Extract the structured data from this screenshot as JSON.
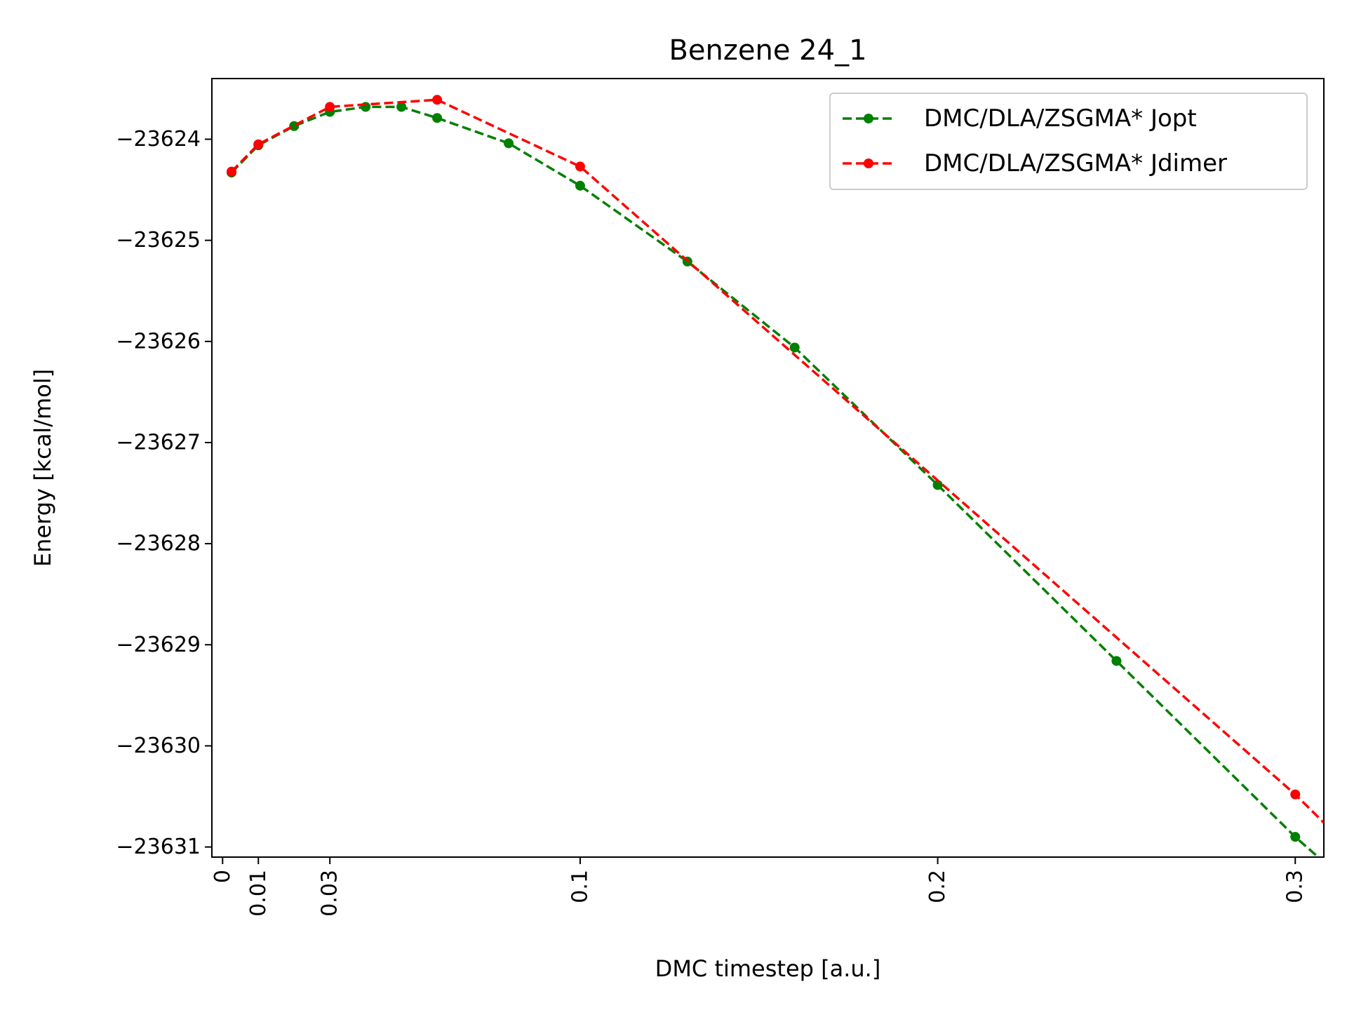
{
  "chart_data": {
    "type": "line",
    "title": "Benzene 24_1",
    "xlabel": "DMC timestep [a.u.]",
    "ylabel": "Energy [kcal/mol]",
    "xlim": [
      -0.003,
      0.308
    ],
    "ylim": [
      -23631.1,
      -23623.4
    ],
    "xticks": [
      0,
      0.01,
      0.03,
      0.1,
      0.2,
      0.3
    ],
    "xtick_labels": [
      "0",
      "0.01",
      "0.03",
      "0.1",
      "0.2",
      "0.3"
    ],
    "yticks": [
      -23624,
      -23625,
      -23626,
      -23627,
      -23628,
      -23629,
      -23630,
      -23631
    ],
    "ytick_labels": [
      "−23624",
      "−23625",
      "−23626",
      "−23627",
      "−23628",
      "−23629",
      "−23630",
      "−23631"
    ],
    "legend_position": "top-right",
    "grid": false,
    "series": [
      {
        "name": "DMC/DLA/ZSGMA* Jopt",
        "color": "#008000",
        "x": [
          0.0025,
          0.01,
          0.02,
          0.03,
          0.04,
          0.05,
          0.06,
          0.08,
          0.1,
          0.13,
          0.16,
          0.2,
          0.25,
          0.3
        ],
        "y": [
          -23624.33,
          -23624.06,
          -23623.87,
          -23623.73,
          -23623.68,
          -23623.68,
          -23623.79,
          -23624.04,
          -23624.46,
          -23625.21,
          -23626.06,
          -23627.42,
          -23629.16,
          -23630.9
        ],
        "extend_to_x": 0.308,
        "extend_to_y": -23631.15
      },
      {
        "name": "DMC/DLA/ZSGMA* Jdimer",
        "color": "#ff0000",
        "x": [
          0.0025,
          0.01,
          0.03,
          0.06,
          0.1,
          0.3
        ],
        "y": [
          -23624.32,
          -23624.05,
          -23623.68,
          -23623.61,
          -23624.27,
          -23630.48
        ],
        "extend_to_x": 0.308,
        "extend_to_y": -23630.76
      }
    ]
  }
}
